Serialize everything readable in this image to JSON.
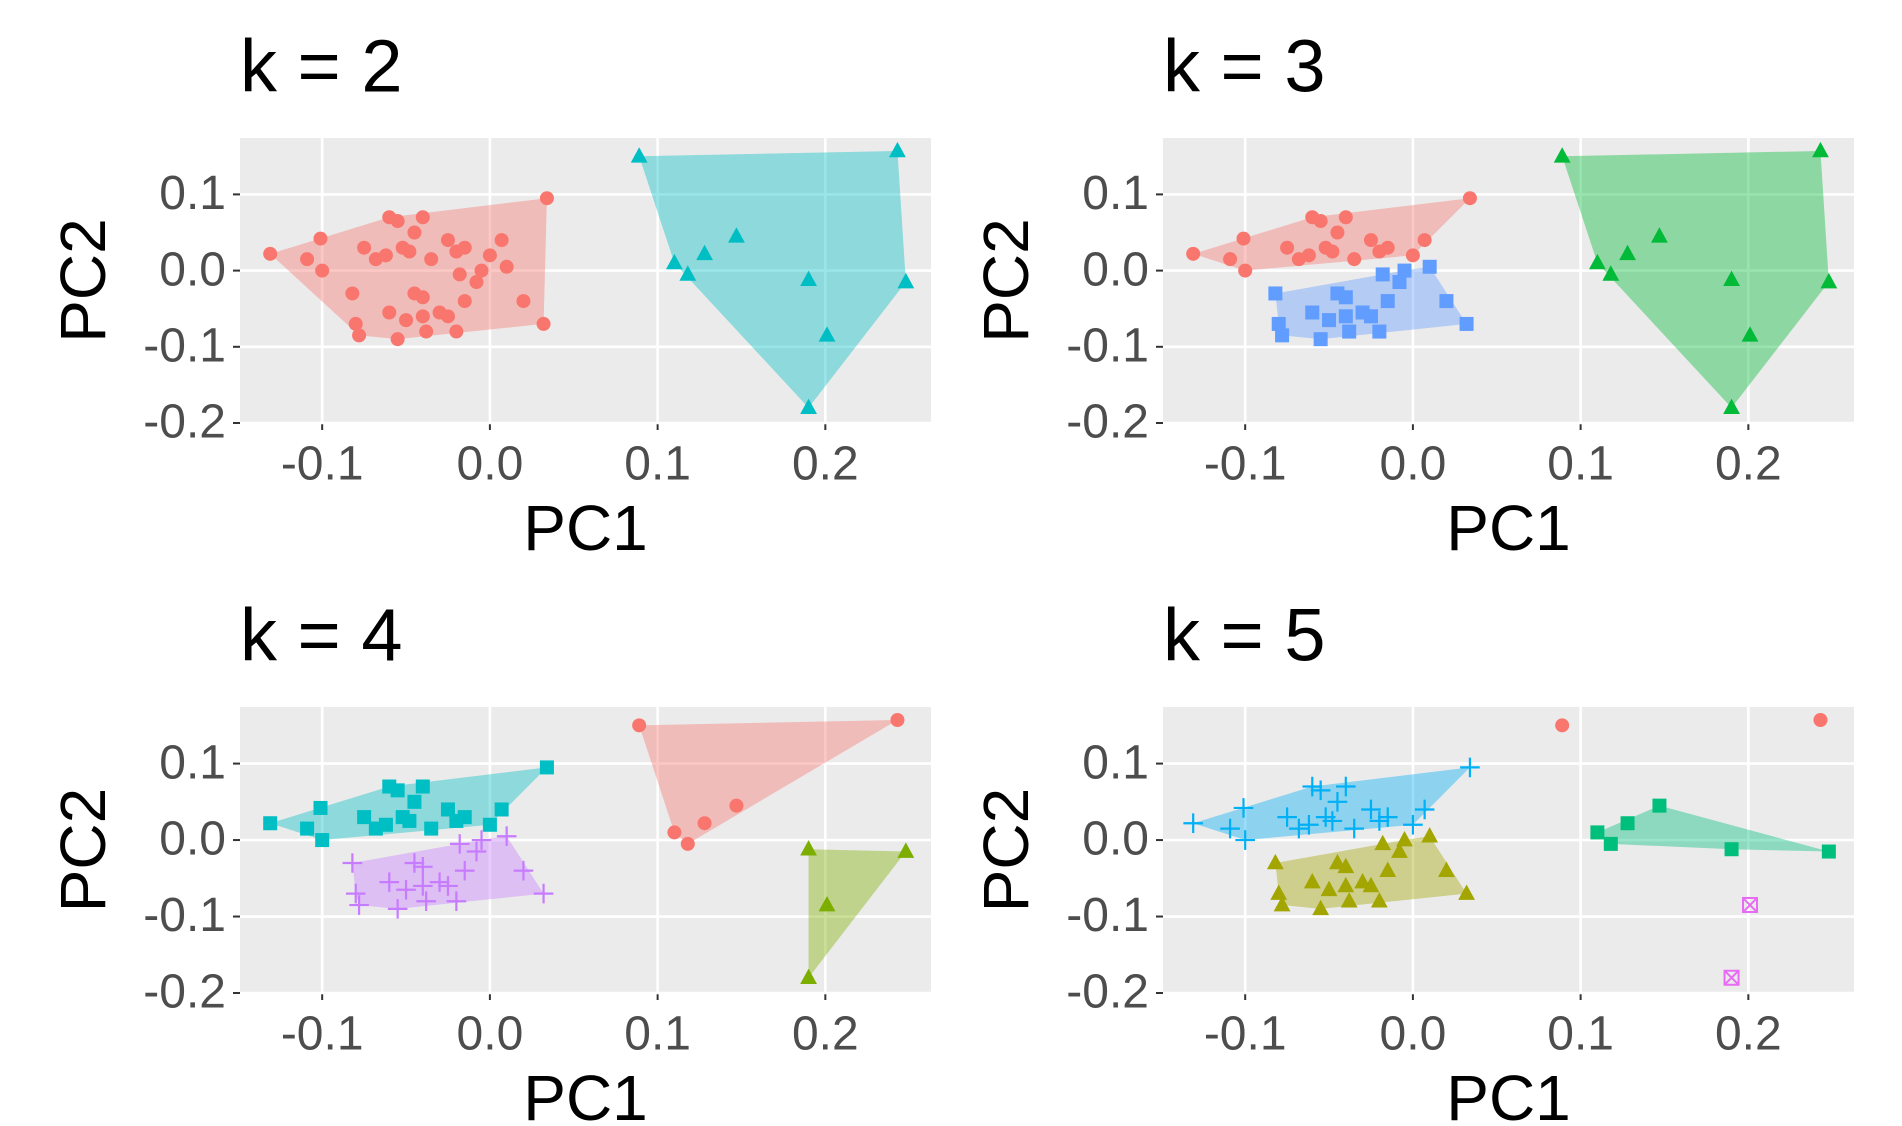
{
  "chart_data": [
    {
      "type": "scatter",
      "title": "k = 2",
      "x_label": "PC1",
      "y_label": "PC2",
      "xlim": [
        -0.149,
        0.263
      ],
      "ylim": [
        -0.2,
        0.174
      ],
      "xticks": [
        -0.1,
        {
          "value": 0,
          "label": "0.0"
        },
        0.1,
        0.2
      ],
      "yticks": [
        -0.2,
        -0.1,
        {
          "value": 0,
          "label": "0.0"
        },
        0.1
      ],
      "grid": true,
      "series": [
        {
          "color": "#F8766D",
          "shape": "circle",
          "x": [
            -0.131,
            -0.109,
            -0.101,
            -0.1,
            -0.075,
            -0.068,
            -0.06,
            -0.055,
            -0.052,
            -0.048,
            -0.045,
            -0.04,
            -0.035,
            -0.025,
            -0.02,
            -0.015,
            0.0,
            0.007,
            0.034,
            -0.062,
            -0.082,
            -0.08,
            -0.078,
            -0.055,
            -0.05,
            -0.045,
            -0.04,
            -0.038,
            -0.03,
            -0.025,
            -0.02,
            -0.018,
            -0.015,
            -0.005,
            -0.008,
            0.01,
            0.02,
            0.032,
            -0.06,
            -0.04
          ],
          "values": [
            0.022,
            0.015,
            0.042,
            0.0,
            0.03,
            0.015,
            0.07,
            0.065,
            0.03,
            0.025,
            0.05,
            0.07,
            0.015,
            0.04,
            0.025,
            0.03,
            0.02,
            0.04,
            0.095,
            0.02,
            -0.03,
            -0.07,
            -0.085,
            -0.09,
            -0.065,
            -0.03,
            -0.06,
            -0.08,
            -0.055,
            -0.06,
            -0.08,
            -0.005,
            -0.04,
            0.0,
            -0.015,
            0.005,
            -0.04,
            -0.07,
            -0.055,
            -0.035
          ]
        },
        {
          "color": "#00BFC4",
          "shape": "triangle",
          "x": [
            0.089,
            0.243,
            0.11,
            0.118,
            0.128,
            0.147,
            0.19,
            0.201,
            0.19,
            0.248
          ],
          "values": [
            0.15,
            0.157,
            0.01,
            -0.005,
            0.022,
            0.045,
            -0.012,
            -0.085,
            -0.18,
            -0.015
          ]
        }
      ]
    },
    {
      "type": "scatter",
      "title": "k = 3",
      "x_label": "PC1",
      "y_label": "PC2",
      "xlim": [
        -0.149,
        0.263
      ],
      "ylim": [
        -0.2,
        0.174
      ],
      "xticks": [
        -0.1,
        {
          "value": 0,
          "label": "0.0"
        },
        0.1,
        0.2
      ],
      "yticks": [
        -0.2,
        -0.1,
        {
          "value": 0,
          "label": "0.0"
        },
        0.1
      ],
      "grid": true,
      "series": [
        {
          "color": "#F8766D",
          "shape": "circle",
          "x": [
            -0.131,
            -0.109,
            -0.101,
            -0.1,
            -0.075,
            -0.068,
            -0.06,
            -0.055,
            -0.052,
            -0.048,
            -0.045,
            -0.04,
            -0.035,
            -0.025,
            -0.02,
            -0.015,
            0.0,
            0.007,
            0.034,
            -0.062
          ],
          "values": [
            0.022,
            0.015,
            0.042,
            0.0,
            0.03,
            0.015,
            0.07,
            0.065,
            0.03,
            0.025,
            0.05,
            0.07,
            0.015,
            0.04,
            0.025,
            0.03,
            0.02,
            0.04,
            0.095,
            0.02
          ]
        },
        {
          "color": "#00BA38",
          "shape": "triangle",
          "x": [
            0.089,
            0.243,
            0.11,
            0.118,
            0.128,
            0.147,
            0.19,
            0.201,
            0.19,
            0.248
          ],
          "values": [
            0.15,
            0.157,
            0.01,
            -0.005,
            0.022,
            0.045,
            -0.012,
            -0.085,
            -0.18,
            -0.015
          ]
        },
        {
          "color": "#619CFF",
          "shape": "square",
          "x": [
            -0.082,
            -0.08,
            -0.078,
            -0.055,
            -0.05,
            -0.045,
            -0.04,
            -0.038,
            -0.03,
            -0.025,
            -0.02,
            -0.018,
            -0.015,
            -0.005,
            -0.008,
            0.01,
            0.02,
            0.032,
            -0.06,
            -0.04
          ],
          "values": [
            -0.03,
            -0.07,
            -0.085,
            -0.09,
            -0.065,
            -0.03,
            -0.06,
            -0.08,
            -0.055,
            -0.06,
            -0.08,
            -0.005,
            -0.04,
            0.0,
            -0.015,
            0.005,
            -0.04,
            -0.07,
            -0.055,
            -0.035
          ]
        }
      ]
    },
    {
      "type": "scatter",
      "title": "k = 4",
      "x_label": "PC1",
      "y_label": "PC2",
      "xlim": [
        -0.149,
        0.263
      ],
      "ylim": [
        -0.2,
        0.174
      ],
      "xticks": [
        -0.1,
        {
          "value": 0,
          "label": "0.0"
        },
        0.1,
        0.2
      ],
      "yticks": [
        -0.2,
        -0.1,
        {
          "value": 0,
          "label": "0.0"
        },
        0.1
      ],
      "grid": true,
      "series": [
        {
          "color": "#F8766D",
          "shape": "circle",
          "x": [
            0.089,
            0.243,
            0.11,
            0.118,
            0.128,
            0.147
          ],
          "values": [
            0.15,
            0.157,
            0.01,
            -0.005,
            0.022,
            0.045
          ]
        },
        {
          "color": "#7CAE00",
          "shape": "triangle",
          "x": [
            0.19,
            0.201,
            0.19,
            0.248
          ],
          "values": [
            -0.012,
            -0.085,
            -0.18,
            -0.015
          ]
        },
        {
          "color": "#00BFC4",
          "shape": "square",
          "x": [
            -0.131,
            -0.109,
            -0.101,
            -0.1,
            -0.075,
            -0.068,
            -0.06,
            -0.055,
            -0.052,
            -0.048,
            -0.045,
            -0.04,
            -0.035,
            -0.025,
            -0.02,
            -0.015,
            0.0,
            0.007,
            0.034,
            -0.062
          ],
          "values": [
            0.022,
            0.015,
            0.042,
            0.0,
            0.03,
            0.015,
            0.07,
            0.065,
            0.03,
            0.025,
            0.05,
            0.07,
            0.015,
            0.04,
            0.025,
            0.03,
            0.02,
            0.04,
            0.095,
            0.02
          ]
        },
        {
          "color": "#C77CFF",
          "shape": "plus",
          "x": [
            -0.082,
            -0.08,
            -0.078,
            -0.055,
            -0.05,
            -0.045,
            -0.04,
            -0.038,
            -0.03,
            -0.025,
            -0.02,
            -0.018,
            -0.015,
            -0.005,
            -0.008,
            0.01,
            0.02,
            0.032,
            -0.06,
            -0.04
          ],
          "values": [
            -0.03,
            -0.07,
            -0.085,
            -0.09,
            -0.065,
            -0.03,
            -0.06,
            -0.08,
            -0.055,
            -0.06,
            -0.08,
            -0.005,
            -0.04,
            0.0,
            -0.015,
            0.005,
            -0.04,
            -0.07,
            -0.055,
            -0.035
          ]
        }
      ]
    },
    {
      "type": "scatter",
      "title": "k = 5",
      "x_label": "PC1",
      "y_label": "PC2",
      "xlim": [
        -0.149,
        0.263
      ],
      "ylim": [
        -0.2,
        0.174
      ],
      "xticks": [
        -0.1,
        {
          "value": 0,
          "label": "0.0"
        },
        0.1,
        0.2
      ],
      "yticks": [
        -0.2,
        -0.1,
        {
          "value": 0,
          "label": "0.0"
        },
        0.1
      ],
      "grid": true,
      "series": [
        {
          "color": "#F8766D",
          "shape": "circle",
          "x": [
            0.089,
            0.243
          ],
          "values": [
            0.15,
            0.157
          ]
        },
        {
          "color": "#A3A500",
          "shape": "triangle",
          "x": [
            -0.082,
            -0.08,
            -0.078,
            -0.055,
            -0.05,
            -0.045,
            -0.04,
            -0.038,
            -0.03,
            -0.025,
            -0.02,
            -0.018,
            -0.015,
            -0.005,
            -0.008,
            0.01,
            0.02,
            0.032,
            -0.06,
            -0.04
          ],
          "values": [
            -0.03,
            -0.07,
            -0.085,
            -0.09,
            -0.065,
            -0.03,
            -0.06,
            -0.08,
            -0.055,
            -0.06,
            -0.08,
            -0.005,
            -0.04,
            0.0,
            -0.015,
            0.005,
            -0.04,
            -0.07,
            -0.055,
            -0.035
          ]
        },
        {
          "color": "#00BF7D",
          "shape": "square",
          "x": [
            0.11,
            0.118,
            0.128,
            0.147,
            0.19,
            0.248
          ],
          "values": [
            0.01,
            -0.005,
            0.022,
            0.045,
            -0.012,
            -0.015
          ]
        },
        {
          "color": "#00B0F6",
          "shape": "plus",
          "x": [
            -0.131,
            -0.109,
            -0.101,
            -0.1,
            -0.075,
            -0.068,
            -0.06,
            -0.055,
            -0.052,
            -0.048,
            -0.045,
            -0.04,
            -0.035,
            -0.025,
            -0.02,
            -0.015,
            0.0,
            0.007,
            0.034,
            -0.062
          ],
          "values": [
            0.022,
            0.015,
            0.042,
            0.0,
            0.03,
            0.015,
            0.07,
            0.065,
            0.03,
            0.025,
            0.05,
            0.07,
            0.015,
            0.04,
            0.025,
            0.03,
            0.02,
            0.04,
            0.095,
            0.02
          ]
        },
        {
          "color": "#E76BF3",
          "shape": "boxed-x",
          "x": [
            0.201,
            0.19
          ],
          "values": [
            -0.085,
            -0.18
          ]
        }
      ]
    }
  ]
}
